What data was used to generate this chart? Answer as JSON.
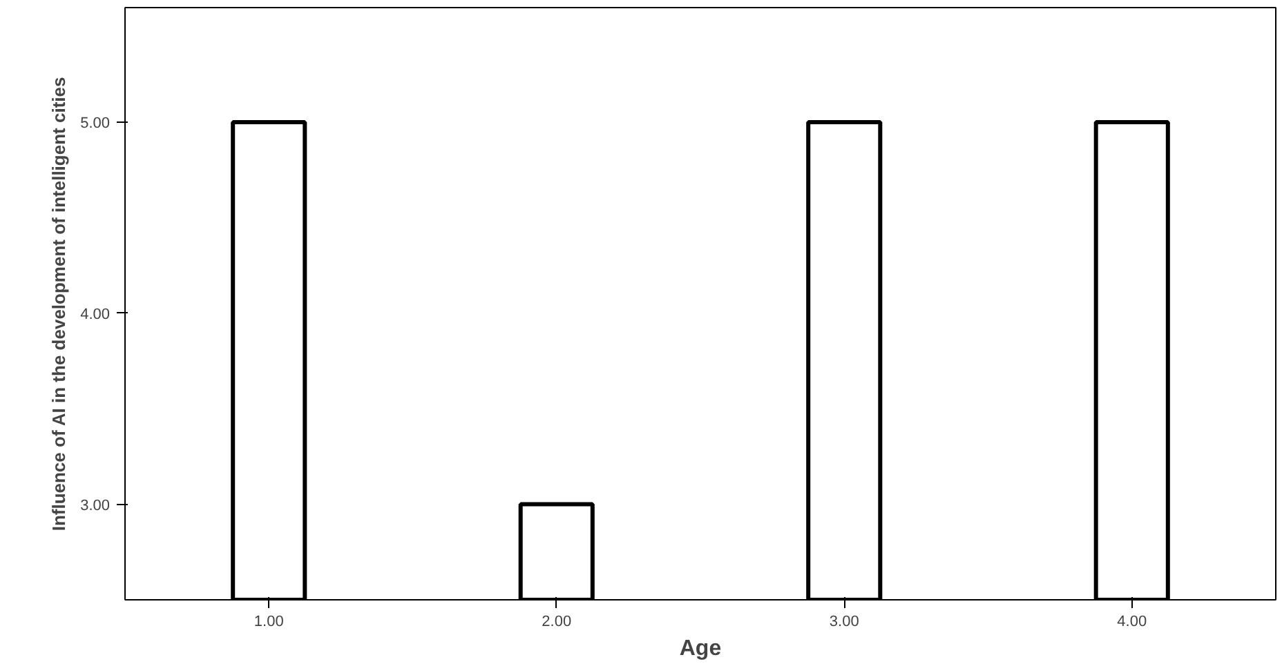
{
  "chart_data": {
    "type": "bar",
    "xlabel": "Age",
    "ylabel": "Influence of AI in the development of intelligent cities",
    "categories": [
      "1.00",
      "2.00",
      "3.00",
      "4.00"
    ],
    "values": [
      5.0,
      3.0,
      5.0,
      5.0
    ],
    "color": "#ffffff",
    "ylim": [
      2.5,
      5.6
    ],
    "yticks": [
      {
        "value": 3,
        "label": "3.00"
      },
      {
        "value": 4,
        "label": "4.00"
      },
      {
        "value": 5,
        "label": "5.00"
      }
    ],
    "grid": false
  }
}
